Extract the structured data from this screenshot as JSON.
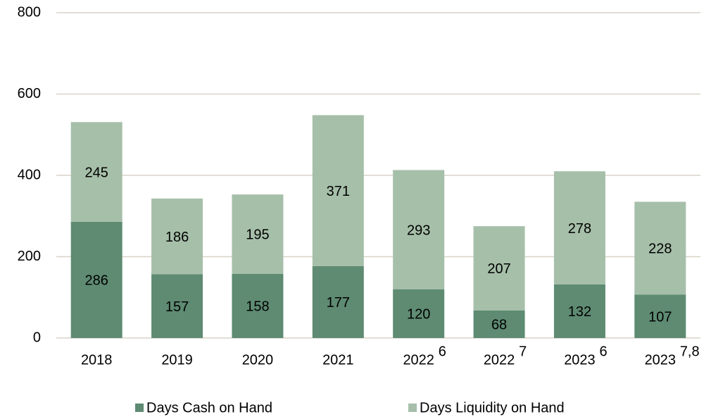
{
  "chart_data": {
    "type": "stacked_bar",
    "categories": [
      "2018",
      "2019",
      "2020",
      "2021",
      "2022",
      "2022",
      "2023",
      "2023"
    ],
    "category_notes": [
      null,
      null,
      null,
      null,
      "6",
      "7",
      "6",
      "7,8"
    ],
    "series": [
      {
        "name": "Days Cash on Hand",
        "color": "#5e8b72",
        "label_color": "#ffffff",
        "values": [
          286,
          157,
          158,
          177,
          120,
          68,
          132,
          107
        ]
      },
      {
        "name": "Days Liquidity on Hand",
        "color": "#a6bfa9",
        "label_color": "#000000",
        "values": [
          245,
          186,
          195,
          371,
          293,
          207,
          278,
          228
        ]
      }
    ],
    "ylim": [
      0,
      800
    ],
    "yticks": [
      0,
      200,
      400,
      600,
      800
    ],
    "grid": true,
    "legend": "bottom"
  }
}
